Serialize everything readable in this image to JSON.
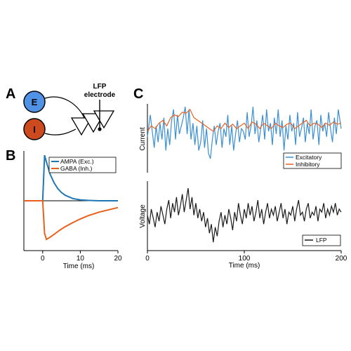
{
  "panels": {
    "a": "A",
    "b": "B",
    "c": "C"
  },
  "schematic": {
    "exc_label": "E",
    "inh_label": "I",
    "electrode_label_line1": "LFP",
    "electrode_label_line2": "electrode",
    "colors": {
      "exc": "#4f92e6",
      "inh": "#cc4a1e"
    }
  },
  "chart_data": [
    {
      "type": "line",
      "panel": "B",
      "xlabel": "Time (ms)",
      "ylabel": "",
      "xlim": [
        -5,
        20
      ],
      "ylim": [
        -1.05,
        1.05
      ],
      "xticks": [
        0,
        10,
        20
      ],
      "legend_position": "top-right",
      "series": [
        {
          "name": "AMPA (Exc.)",
          "color": "#1f77b4",
          "t": [
            -5,
            0,
            0.5,
            1,
            2,
            3,
            4,
            5,
            6,
            8,
            10,
            12,
            15,
            20
          ],
          "values": [
            0,
            0,
            1.0,
            0.85,
            0.58,
            0.4,
            0.27,
            0.18,
            0.12,
            0.05,
            0.02,
            0.01,
            0,
            0
          ]
        },
        {
          "name": "GABA (Inh.)",
          "color": "#e8601c",
          "t": [
            -5,
            0,
            0.5,
            1,
            2,
            3,
            4,
            5,
            6,
            8,
            10,
            12,
            15,
            20
          ],
          "values": [
            0,
            0,
            -0.72,
            -0.85,
            -0.8,
            -0.74,
            -0.68,
            -0.62,
            -0.57,
            -0.48,
            -0.4,
            -0.33,
            -0.25,
            -0.15
          ]
        }
      ]
    },
    {
      "type": "line",
      "panel": "C-top",
      "ylabel": "Current",
      "xlim": [
        0,
        200
      ],
      "legend_position": "bottom-right",
      "series": [
        {
          "name": "Excitatory",
          "color": "#3b8fd4",
          "t": [
            0,
            3,
            5,
            7,
            9,
            11,
            13,
            15,
            17,
            19,
            21,
            23,
            25,
            27,
            29,
            31,
            33,
            35,
            37,
            39,
            41,
            43,
            45,
            47,
            49,
            51,
            53,
            55,
            57,
            59,
            61,
            63,
            65,
            67,
            69,
            71,
            73,
            75,
            77,
            79,
            81,
            83,
            85,
            87,
            89,
            91,
            93,
            95,
            97,
            99,
            101,
            103,
            105,
            107,
            109,
            111,
            113,
            115,
            117,
            119,
            121,
            123,
            125,
            127,
            129,
            131,
            133,
            135,
            137,
            139,
            141,
            143,
            145,
            147,
            149,
            151,
            153,
            155,
            157,
            159,
            161,
            163,
            165,
            167,
            169,
            171,
            173,
            175,
            177,
            179,
            181,
            183,
            185,
            187,
            189,
            191,
            193,
            195,
            197,
            200
          ],
          "values": [
            0.35,
            0.75,
            0.45,
            0.15,
            0.55,
            0.25,
            0.6,
            0.3,
            0.7,
            0.1,
            0.5,
            0.2,
            0.65,
            0.85,
            0.3,
            0.75,
            0.4,
            0.55,
            0.7,
            0.9,
            0.4,
            0.85,
            0.3,
            0.6,
            0.2,
            0.55,
            0.1,
            0.25,
            0.65,
            0.15,
            0.5,
            0.05,
            -0.05,
            0.3,
            0.55,
            0.2,
            0.45,
            0.6,
            0.15,
            0.5,
            0.35,
            0.75,
            0.2,
            0.55,
            0.1,
            0.4,
            0.65,
            0.25,
            0.5,
            0.45,
            0.3,
            0.8,
            0.35,
            0.55,
            0.9,
            0.4,
            0.65,
            0.25,
            0.5,
            0.75,
            0.3,
            0.85,
            0.45,
            0.6,
            0.2,
            0.7,
            0.4,
            0.85,
            0.35,
            0.65,
            0.1,
            0.55,
            0.3,
            0.75,
            0.45,
            0.6,
            0.2,
            0.8,
            0.35,
            0.5,
            0.7,
            0.25,
            0.6,
            0.4,
            0.85,
            0.3,
            0.55,
            0.65,
            0.2,
            0.75,
            0.45,
            0.6,
            0.35,
            0.8,
            0.5,
            0.25,
            0.7,
            0.4,
            0.85,
            0.5
          ]
        },
        {
          "name": "Inhibitory",
          "color": "#e8601c",
          "t": [
            0,
            4,
            8,
            12,
            16,
            20,
            24,
            28,
            32,
            36,
            40,
            44,
            48,
            52,
            56,
            60,
            64,
            68,
            72,
            76,
            80,
            84,
            88,
            92,
            96,
            100,
            104,
            108,
            112,
            116,
            120,
            124,
            128,
            132,
            136,
            140,
            144,
            148,
            152,
            156,
            160,
            164,
            168,
            172,
            176,
            180,
            184,
            188,
            192,
            196,
            200
          ],
          "values": [
            0.45,
            0.55,
            0.5,
            0.6,
            0.65,
            0.55,
            0.7,
            0.75,
            0.72,
            0.8,
            0.78,
            0.85,
            0.7,
            0.65,
            0.6,
            0.55,
            0.5,
            0.45,
            0.55,
            0.5,
            0.6,
            0.52,
            0.58,
            0.5,
            0.55,
            0.6,
            0.5,
            0.62,
            0.58,
            0.5,
            0.6,
            0.55,
            0.5,
            0.6,
            0.55,
            0.52,
            0.58,
            0.6,
            0.5,
            0.55,
            0.6,
            0.65,
            0.55,
            0.6,
            0.58,
            0.52,
            0.6,
            0.56,
            0.62,
            0.58,
            0.6
          ]
        }
      ]
    },
    {
      "type": "line",
      "panel": "C-bottom",
      "xlabel": "Time (ms)",
      "ylabel": "Voltage",
      "xlim": [
        0,
        200
      ],
      "xticks": [
        0,
        100,
        200
      ],
      "legend_position": "bottom-right",
      "series": [
        {
          "name": "LFP",
          "color": "#1a1a1a",
          "t": [
            0,
            2,
            4,
            6,
            8,
            10,
            12,
            14,
            16,
            18,
            20,
            22,
            24,
            26,
            28,
            30,
            32,
            34,
            36,
            38,
            40,
            42,
            44,
            46,
            48,
            50,
            52,
            54,
            56,
            58,
            60,
            62,
            64,
            66,
            68,
            70,
            72,
            74,
            76,
            78,
            80,
            82,
            84,
            86,
            88,
            90,
            92,
            94,
            96,
            98,
            100,
            102,
            104,
            106,
            108,
            110,
            112,
            114,
            116,
            118,
            120,
            122,
            124,
            126,
            128,
            130,
            132,
            134,
            136,
            138,
            140,
            142,
            144,
            146,
            148,
            150,
            152,
            154,
            156,
            158,
            160,
            162,
            164,
            166,
            168,
            170,
            172,
            174,
            176,
            178,
            180,
            182,
            184,
            186,
            188,
            190,
            192,
            194,
            196,
            198,
            200
          ],
          "values": [
            0.5,
            0.35,
            0.6,
            0.45,
            0.3,
            0.55,
            0.4,
            0.65,
            0.5,
            0.35,
            0.6,
            0.75,
            0.45,
            0.7,
            0.55,
            0.8,
            0.5,
            0.65,
            0.85,
            0.55,
            0.75,
            0.95,
            0.6,
            0.8,
            0.5,
            0.7,
            0.45,
            0.6,
            0.4,
            0.55,
            0.3,
            0.45,
            0.2,
            0.35,
            0.05,
            0.3,
            0.15,
            0.4,
            0.55,
            0.3,
            0.5,
            0.35,
            0.6,
            0.45,
            0.25,
            0.55,
            0.4,
            0.7,
            0.5,
            0.35,
            0.6,
            0.45,
            0.7,
            0.5,
            0.65,
            0.4,
            0.55,
            0.75,
            0.45,
            0.6,
            0.35,
            0.55,
            0.7,
            0.45,
            0.6,
            0.5,
            0.65,
            0.4,
            0.55,
            0.7,
            0.45,
            0.6,
            0.35,
            0.55,
            0.5,
            0.65,
            0.4,
            0.6,
            0.75,
            0.5,
            0.55,
            0.4,
            0.6,
            0.7,
            0.45,
            0.55,
            0.5,
            0.65,
            0.4,
            0.6,
            0.55,
            0.7,
            0.45,
            0.6,
            0.5,
            0.65,
            0.55,
            0.7,
            0.5,
            0.6,
            0.55
          ]
        }
      ]
    }
  ]
}
